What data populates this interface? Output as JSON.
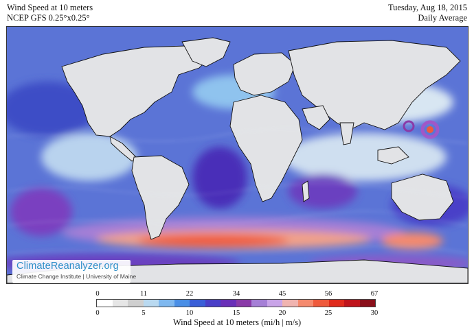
{
  "header": {
    "title": "Wind Speed at 10 meters",
    "model": "NCEP GFS 0.25°x0.25°",
    "date": "Tuesday, Aug 18, 2015",
    "period": "Daily Average"
  },
  "brand": {
    "name": "ClimateReanalyzer.org",
    "affiliation": "Climate Change Institute | University of Maine"
  },
  "legend": {
    "label": "Wind Speed at 10 meters (mi/h | m/s)",
    "mph_ticks": [
      "0",
      "11",
      "22",
      "34",
      "45",
      "56",
      "67"
    ],
    "ms_ticks": [
      "0",
      "5",
      "10",
      "15",
      "20",
      "25",
      "30"
    ],
    "colors": [
      "#ffffff",
      "#e6e6e6",
      "#cfcfcf",
      "#b9d9f0",
      "#7fb8ef",
      "#4a8fe6",
      "#3a5fd8",
      "#4a3fc8",
      "#6a2fb8",
      "#8a3aa8",
      "#a57fd6",
      "#c9a4e8",
      "#f0b4b0",
      "#f58a6e",
      "#ef5a3c",
      "#e02a1c",
      "#c0141c",
      "#8a0f1a"
    ]
  }
}
